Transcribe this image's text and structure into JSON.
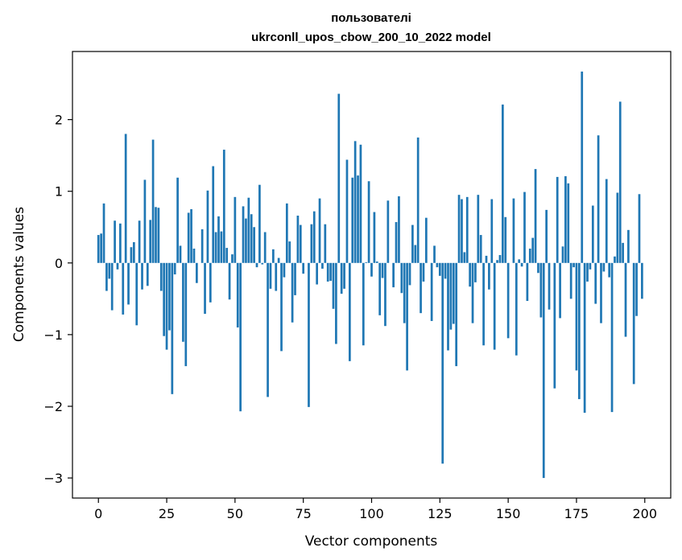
{
  "chart_data": {
    "type": "bar",
    "title_line1": "пользователі",
    "title_line2": "ukrconll_upos_cbow_200_10_2022 model",
    "xlabel": "Vector components",
    "ylabel": "Components values",
    "xlim": [
      -9.5,
      209.5
    ],
    "ylim": [
      -3.28,
      2.95
    ],
    "xticks": [
      0,
      25,
      50,
      75,
      100,
      125,
      150,
      175,
      200
    ],
    "yticks": [
      -3,
      -2,
      -1,
      0,
      1,
      2
    ],
    "bar_color": "#1f77b4",
    "grid": false,
    "values": [
      0.39,
      0.41,
      0.83,
      -0.39,
      -0.22,
      -0.66,
      0.59,
      -0.09,
      0.55,
      -0.72,
      1.8,
      -0.58,
      0.22,
      0.29,
      -0.87,
      0.59,
      -0.37,
      1.16,
      -0.32,
      0.6,
      1.72,
      0.78,
      0.77,
      -0.39,
      -1.02,
      -1.21,
      -0.94,
      -1.83,
      -0.16,
      1.19,
      0.24,
      -1.1,
      -1.44,
      0.7,
      0.75,
      0.2,
      -0.28,
      0.0,
      0.47,
      -0.71,
      1.01,
      -0.55,
      1.35,
      0.43,
      0.65,
      0.44,
      1.58,
      0.21,
      -0.51,
      0.12,
      0.92,
      -0.9,
      -2.07,
      0.79,
      0.62,
      0.91,
      0.68,
      0.5,
      -0.06,
      1.09,
      -0.02,
      0.43,
      -1.87,
      -0.36,
      0.19,
      -0.39,
      0.07,
      -1.23,
      -0.2,
      0.83,
      0.3,
      -0.83,
      -0.45,
      0.66,
      0.53,
      -0.15,
      0.0,
      -2.01,
      0.54,
      0.72,
      -0.3,
      0.9,
      -0.08,
      0.54,
      -0.26,
      -0.25,
      -0.64,
      -1.13,
      2.36,
      -0.43,
      -0.36,
      1.44,
      -1.37,
      1.19,
      1.7,
      1.22,
      1.65,
      -1.15,
      0.01,
      1.14,
      -0.19,
      0.71,
      0.02,
      -0.73,
      -0.21,
      -0.88,
      0.87,
      0.0,
      -0.34,
      0.57,
      0.93,
      -0.42,
      -0.84,
      -1.5,
      -0.31,
      0.53,
      0.25,
      1.75,
      -0.7,
      -0.26,
      0.63,
      0.0,
      -0.81,
      0.24,
      -0.06,
      -0.18,
      -2.8,
      -0.22,
      -1.22,
      -0.93,
      -0.85,
      -1.44,
      0.95,
      0.89,
      0.15,
      0.92,
      -0.33,
      -0.84,
      -0.27,
      0.95,
      0.39,
      -1.15,
      0.1,
      -0.37,
      0.89,
      -1.21,
      0.04,
      0.11,
      2.21,
      0.64,
      -1.05,
      0.0,
      0.9,
      -1.29,
      0.05,
      -0.05,
      0.99,
      -0.53,
      0.2,
      0.35,
      1.31,
      -0.14,
      -0.76,
      -3.0,
      0.74,
      -0.65,
      0.0,
      -1.75,
      1.2,
      -0.77,
      0.23,
      1.21,
      1.11,
      -0.5,
      -0.06,
      -1.5,
      -1.9,
      2.67,
      -2.09,
      -0.26,
      -0.09,
      0.8,
      -0.57,
      1.78,
      -0.84,
      -0.12,
      1.17,
      -0.2,
      -2.08,
      0.09,
      0.98,
      2.25,
      0.28,
      -1.03,
      0.46,
      0.0,
      -1.69,
      -0.74,
      0.96,
      -0.5
    ]
  }
}
